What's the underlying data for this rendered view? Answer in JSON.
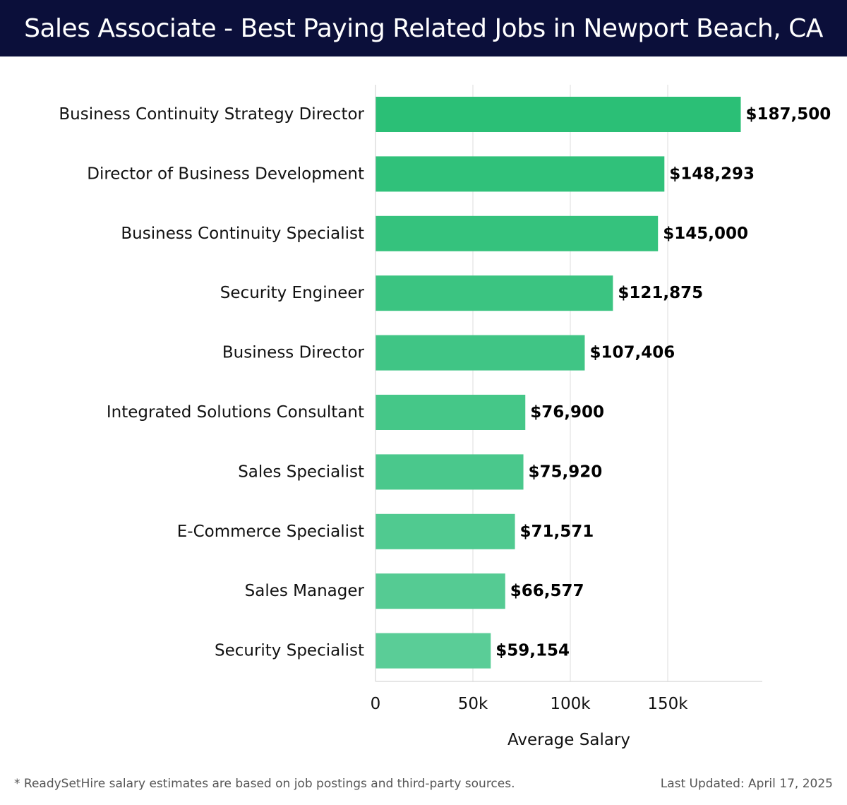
{
  "header": {
    "title": "Sales Associate - Best Paying Related Jobs in Newport Beach, CA"
  },
  "footer": {
    "note": "* ReadySetHire salary estimates are based on job postings and third-party sources.",
    "updated": "Last Updated: April 17, 2025"
  },
  "colors": {
    "header_bg": "#0b0f3a",
    "bar_top": "#2bbf76",
    "bar_bottom": "#5acd97",
    "grid": "#dddddd"
  },
  "chart_data": {
    "type": "bar",
    "orientation": "horizontal",
    "title": "",
    "xlabel": "Average Salary",
    "ylabel": "",
    "xlim": [
      0,
      197000
    ],
    "x_ticks": [
      0,
      50000,
      100000,
      150000
    ],
    "x_tick_labels": [
      "0",
      "50k",
      "100k",
      "150k"
    ],
    "grid": "vertical",
    "categories": [
      "Business Continuity Strategy Director",
      "Director of Business Development",
      "Business Continuity Specialist",
      "Security Engineer",
      "Business Director",
      "Integrated Solutions Consultant",
      "Sales Specialist",
      "E-Commerce Specialist",
      "Sales Manager",
      "Security Specialist"
    ],
    "values": [
      187500,
      148293,
      145000,
      121875,
      107406,
      76900,
      75920,
      71571,
      66577,
      59154
    ],
    "value_labels": [
      "$187,500",
      "$148,293",
      "$145,000",
      "$121,875",
      "$107,406",
      "$76,900",
      "$75,920",
      "$71,571",
      "$66,577",
      "$59,154"
    ]
  }
}
